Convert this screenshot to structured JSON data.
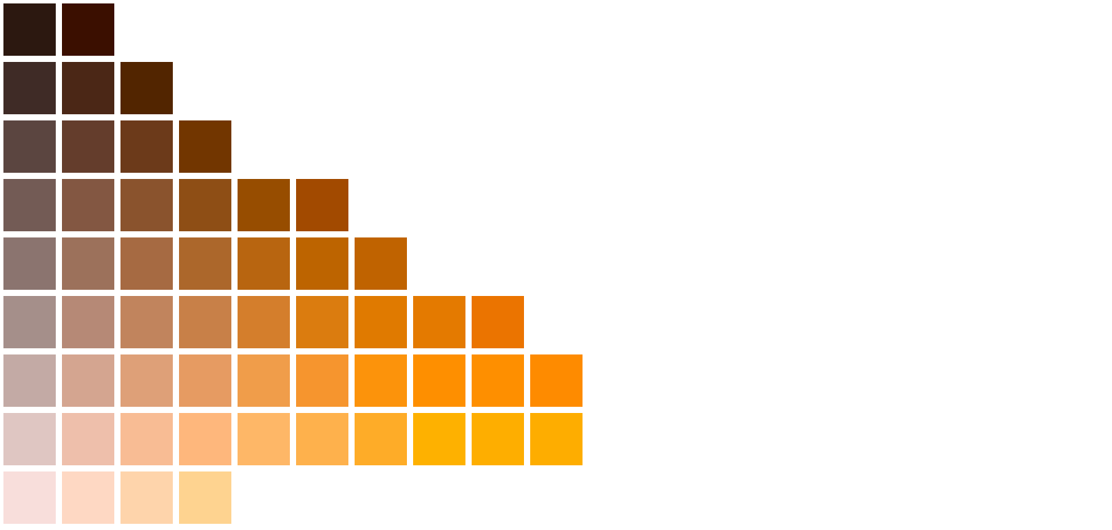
{
  "palette": {
    "rows": [
      [
        "#2c1810",
        "#3b0f00"
      ],
      [
        "#3f2b26",
        "#4b2716",
        "#522500"
      ],
      [
        "#5b4540",
        "#643d2c",
        "#6c3a1a",
        "#723600"
      ],
      [
        "#735b55",
        "#835742",
        "#8a532d",
        "#8e4e15",
        "#974d00",
        "#a24a00"
      ],
      [
        "#8b746f",
        "#9c715b",
        "#a66a42",
        "#ac672b",
        "#b86510",
        "#bd6400",
        "#c06300"
      ],
      [
        "#a58f8a",
        "#b68976",
        "#c1845d",
        "#c88048",
        "#d47e2c",
        "#db7c0f",
        "#e07a00",
        "#e47a00",
        "#eb7400"
      ],
      [
        "#c3aaa5",
        "#d4a590",
        "#dea078",
        "#e69b62",
        "#f09d4a",
        "#f6952e",
        "#fc930b",
        "#fe8f00",
        "#fe8f00",
        "#fe8b00"
      ],
      [
        "#dfc6c2",
        "#eebfab",
        "#f8bc94",
        "#feb77c",
        "#feb767",
        "#feb14c",
        "#feac28",
        "#feb100",
        "#feae00",
        "#fead00"
      ],
      [
        "#f8dedb",
        "#fed8c3",
        "#fed4ab",
        "#fed390"
      ]
    ]
  }
}
